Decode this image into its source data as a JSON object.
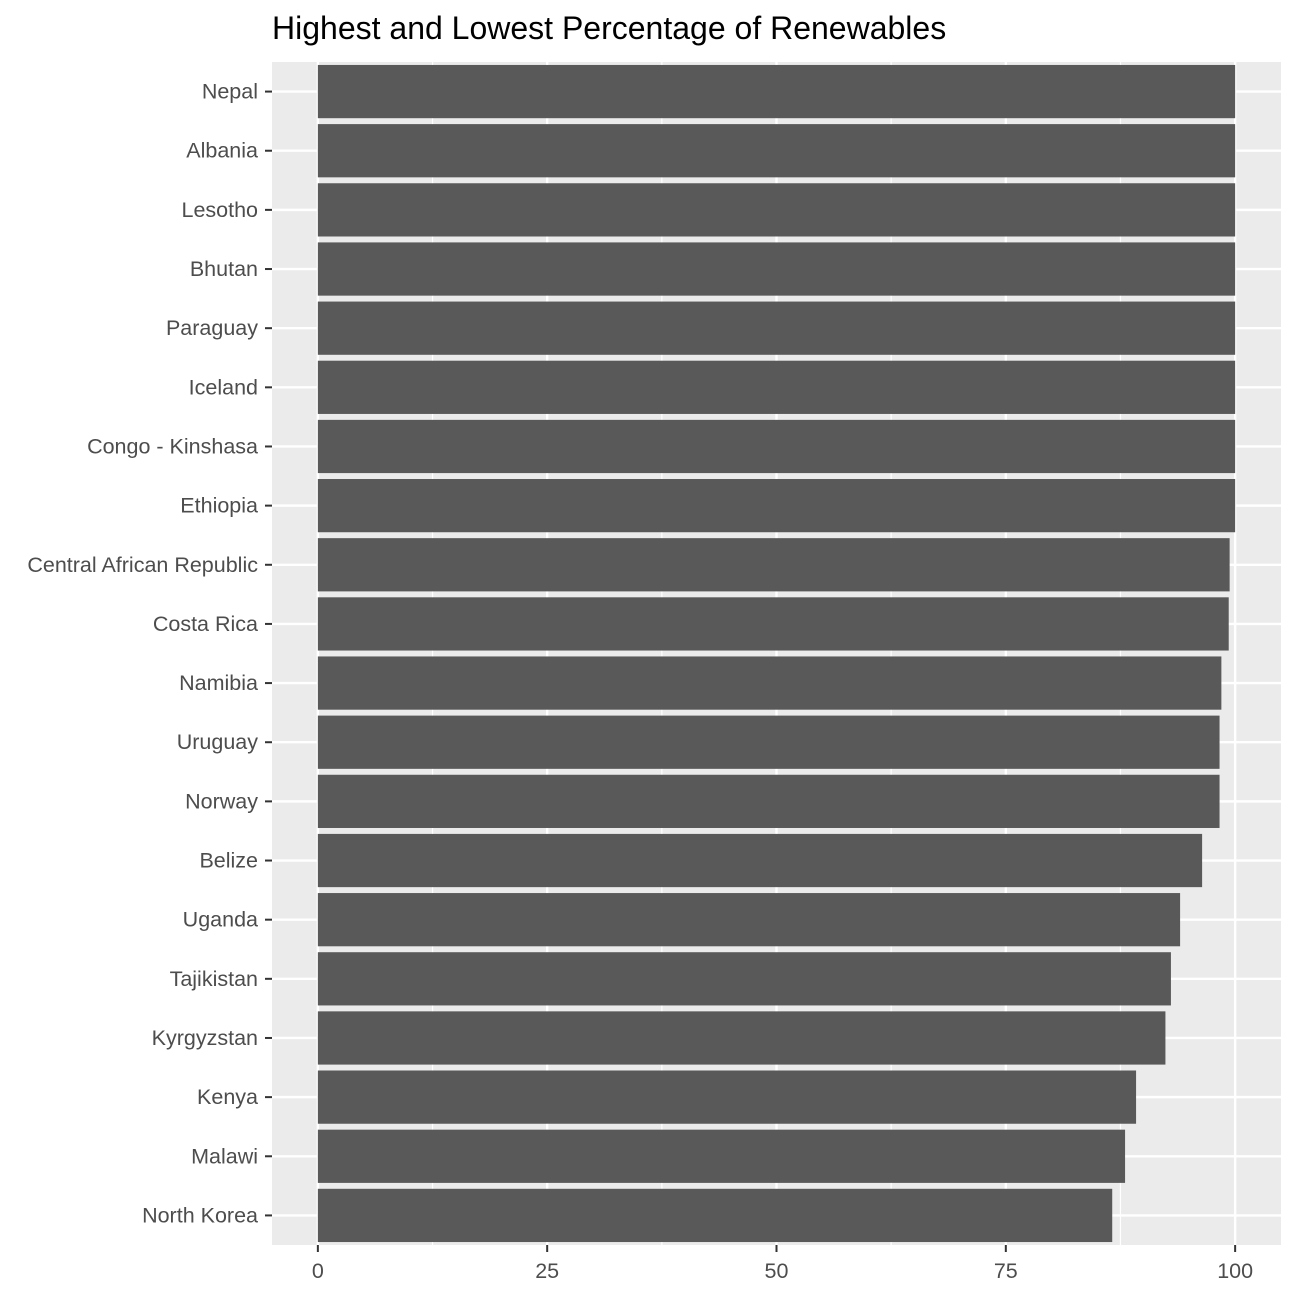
{
  "chart_data": {
    "type": "bar",
    "orientation": "horizontal",
    "title": "Highest and Lowest Percentage of Renewables",
    "xlabel": "",
    "ylabel": "",
    "categories": [
      "Nepal",
      "Albania",
      "Lesotho",
      "Bhutan",
      "Paraguay",
      "Iceland",
      "Congo - Kinshasa",
      "Ethiopia",
      "Central African Republic",
      "Costa Rica",
      "Namibia",
      "Uruguay",
      "Norway",
      "Belize",
      "Uganda",
      "Tajikistan",
      "Kyrgyzstan",
      "Kenya",
      "Malawi",
      "North Korea"
    ],
    "values": [
      100,
      100,
      100,
      100,
      100,
      100,
      100,
      100,
      99.4,
      99.3,
      98.5,
      98.3,
      98.3,
      96.4,
      94.0,
      93.0,
      92.4,
      89.2,
      88.0,
      86.6
    ],
    "xlim": [
      -5,
      105
    ],
    "xticks": [
      0,
      25,
      50,
      75,
      100
    ],
    "tick_labels": [
      "0",
      "25",
      "50",
      "75",
      "100"
    ],
    "grid": true,
    "legend": "none",
    "colors": {
      "bar": "#595959",
      "panel_background": "#EBEBEB",
      "grid": "#FFFFFF",
      "axis_text": "#4D4D4D",
      "tick": "#333333"
    }
  }
}
